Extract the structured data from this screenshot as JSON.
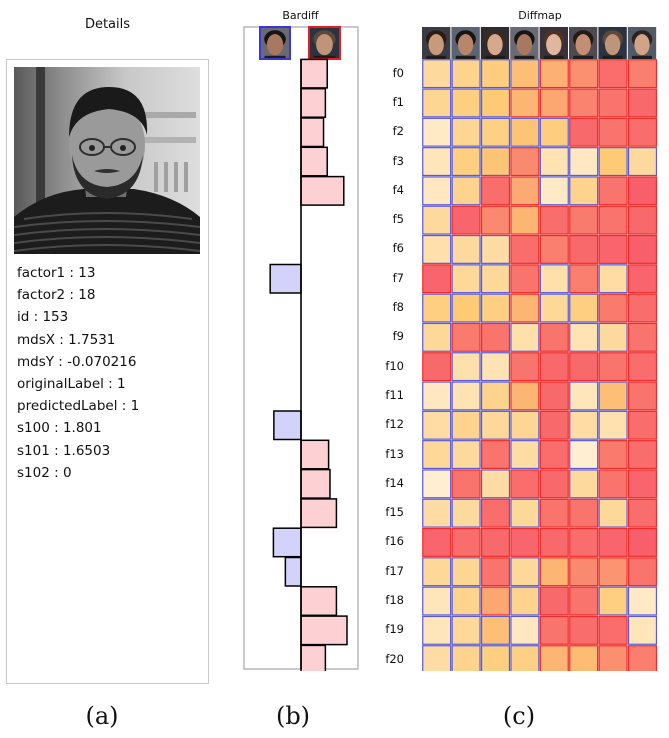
{
  "panels": {
    "details": {
      "title": "Details",
      "caption": "(a)",
      "photo_icon": "grayscale-face-photo",
      "properties": [
        {
          "key": "factor1",
          "value": "13"
        },
        {
          "key": "factor2",
          "value": "18"
        },
        {
          "key": "id",
          "value": "153"
        },
        {
          "key": "mdsX",
          "value": "1.7531"
        },
        {
          "key": "mdsY",
          "value": "-0.070216"
        },
        {
          "key": "originalLabel",
          "value": "1"
        },
        {
          "key": "predictedLabel",
          "value": "1"
        },
        {
          "key": "s100",
          "value": "1.801"
        },
        {
          "key": "s101",
          "value": "1.6503"
        },
        {
          "key": "s102",
          "value": "0"
        }
      ]
    },
    "bardiff": {
      "title": "Bardiff",
      "caption": "(b)",
      "left_thumb_icon": "face-thumbnail-blue",
      "right_thumb_icon": "face-thumbnail-red",
      "positive_color": "#fdd0d3",
      "negative_color": "#d2d2fa",
      "values": [
        0.57,
        0.53,
        0.49,
        0.57,
        0.93,
        0,
        0,
        -0.67,
        0,
        0,
        0,
        0,
        -0.59,
        0.6,
        0.63,
        0.77,
        -0.6,
        -0.34,
        0.77,
        1.0,
        0.53
      ]
    },
    "diffmap": {
      "title": "Diffmap",
      "caption": "(c)",
      "face_icons": [
        "face-thumbnail",
        "face-thumbnail",
        "face-thumbnail",
        "face-thumbnail",
        "face-thumbnail",
        "face-thumbnail",
        "face-thumbnail",
        "face-thumbnail"
      ],
      "row_labels": [
        "f0",
        "f1",
        "f2",
        "f3",
        "f4",
        "f5",
        "f6",
        "f7",
        "f8",
        "f9",
        "f10",
        "f11",
        "f12",
        "f13",
        "f14",
        "f15",
        "f16",
        "f17",
        "f18",
        "f19",
        "f20"
      ],
      "low_color": "#fff3dc",
      "high_color": "#f7546a",
      "cells": [
        [
          0.28,
          0.35,
          0.42,
          0.5,
          0.57,
          0.72,
          0.88,
          0.8
        ],
        [
          0.32,
          0.4,
          0.45,
          0.55,
          0.62,
          0.78,
          0.85,
          0.9
        ],
        [
          0.1,
          0.32,
          0.38,
          0.48,
          0.42,
          0.9,
          0.85,
          0.88
        ],
        [
          0.15,
          0.4,
          0.48,
          0.75,
          0.18,
          0.12,
          0.45,
          0.28
        ],
        [
          0.12,
          0.35,
          0.88,
          0.6,
          0.1,
          0.35,
          0.85,
          0.95
        ],
        [
          0.28,
          0.92,
          0.75,
          0.55,
          0.88,
          0.82,
          0.85,
          0.9
        ],
        [
          0.22,
          0.28,
          0.25,
          0.88,
          0.8,
          0.9,
          0.92,
          0.95
        ],
        [
          0.92,
          0.3,
          0.3,
          0.85,
          0.22,
          0.8,
          0.25,
          0.92
        ],
        [
          0.4,
          0.45,
          0.4,
          0.55,
          0.3,
          0.4,
          0.82,
          0.88
        ],
        [
          0.3,
          0.82,
          0.85,
          0.22,
          0.85,
          0.18,
          0.28,
          0.85
        ],
        [
          0.9,
          0.22,
          0.18,
          0.85,
          0.9,
          0.9,
          0.85,
          0.88
        ],
        [
          0.12,
          0.18,
          0.35,
          0.55,
          0.9,
          0.15,
          0.5,
          0.85
        ],
        [
          0.25,
          0.35,
          0.3,
          0.32,
          0.9,
          0.25,
          0.2,
          0.88
        ],
        [
          0.3,
          0.28,
          0.85,
          0.25,
          0.88,
          0.05,
          0.82,
          0.88
        ],
        [
          0.05,
          0.85,
          0.25,
          0.88,
          0.9,
          0.28,
          0.85,
          0.92
        ],
        [
          0.25,
          0.28,
          0.88,
          0.3,
          0.85,
          0.85,
          0.3,
          0.88
        ],
        [
          0.92,
          0.88,
          0.9,
          0.92,
          0.9,
          0.88,
          0.92,
          0.95
        ],
        [
          0.3,
          0.32,
          0.85,
          0.3,
          0.55,
          0.75,
          0.7,
          0.85
        ],
        [
          0.15,
          0.35,
          0.62,
          0.35,
          0.9,
          0.85,
          0.4,
          0.1
        ],
        [
          0.15,
          0.3,
          0.5,
          0.12,
          0.85,
          0.88,
          0.88,
          0.15
        ],
        [
          0.25,
          0.35,
          0.4,
          0.38,
          0.55,
          0.52,
          0.72,
          0.8
        ]
      ]
    }
  }
}
